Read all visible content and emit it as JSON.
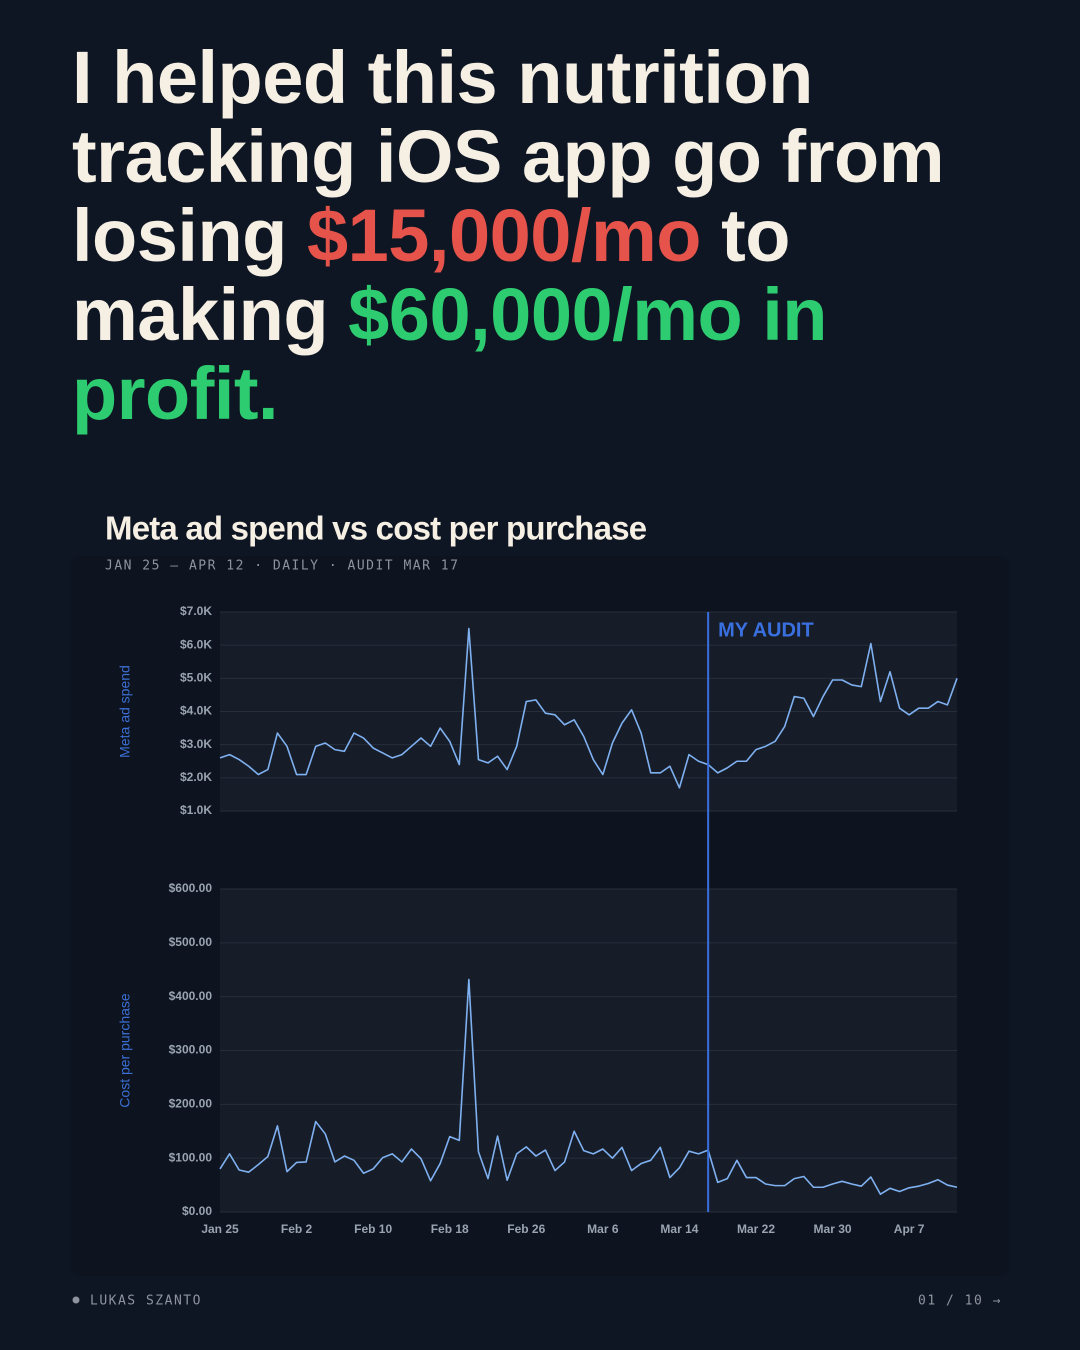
{
  "header": {
    "headline": [
      "I helped this nutrition tracking iOS app go from losing ",
      "$15,000/mo",
      " to making ",
      "$60,000/mo in profit."
    ]
  },
  "chart_data": {
    "type": "line",
    "title": "Meta ad spend vs cost per purchase",
    "subtitle": "JAN 25 – APR 12 · DAILY · AUDIT MAR 17",
    "categories": [
      "Jan 25",
      null,
      null,
      null,
      null,
      null,
      null,
      null,
      "Feb 2",
      null,
      null,
      null,
      null,
      null,
      null,
      null,
      "Feb 10",
      null,
      null,
      null,
      null,
      null,
      null,
      null,
      "Feb 18",
      null,
      null,
      null,
      null,
      null,
      null,
      null,
      "Feb 26",
      null,
      null,
      null,
      null,
      null,
      null,
      null,
      "Mar 6",
      null,
      null,
      null,
      null,
      null,
      null,
      null,
      "Mar 14",
      null,
      null,
      null,
      null,
      null,
      null,
      null,
      "Mar 22",
      null,
      null,
      null,
      null,
      null,
      null,
      null,
      "Mar 30",
      null,
      null,
      null,
      null,
      null,
      null,
      null,
      "Apr 7",
      null,
      null,
      null,
      null,
      null
    ],
    "annotation": {
      "label": "MY AUDIT",
      "at": 51,
      "color": "#3a6fe0"
    },
    "grid": true,
    "ylim": [
      1000,
      7000
    ],
    "yticks": [
      {
        "value": 1000,
        "label": "$1.0K"
      },
      {
        "value": 2000,
        "label": "$2.0K"
      },
      {
        "value": 3000,
        "label": "$3.0K"
      },
      {
        "value": 4000,
        "label": "$4.0K"
      },
      {
        "value": 5000,
        "label": "$5.0K"
      },
      {
        "value": 6000,
        "label": "$6.0K"
      },
      {
        "value": 7000,
        "label": "$7.0K"
      }
    ],
    "y2lim": [
      0,
      600
    ],
    "y2ticks": [
      {
        "value": 0,
        "label": "$0.00"
      },
      {
        "value": 100,
        "label": "$100.00"
      },
      {
        "value": 200,
        "label": "$200.00"
      },
      {
        "value": 300,
        "label": "$300.00"
      },
      {
        "value": 400,
        "label": "$400.00"
      },
      {
        "value": 500,
        "label": "$500.00"
      },
      {
        "value": 600,
        "label": "$600.00"
      }
    ],
    "series": [
      {
        "name": "Meta ad spend",
        "color": "#7fb0f0",
        "values": [
          2600,
          2700,
          2550,
          2350,
          2100,
          2250,
          3350,
          2950,
          2100,
          2100,
          2950,
          3050,
          2850,
          2800,
          3350,
          3200,
          2900,
          2750,
          2600,
          2700,
          2950,
          3200,
          2950,
          3500,
          3100,
          2400,
          6500,
          2550,
          2450,
          2650,
          2250,
          2950,
          4300,
          4350,
          3950,
          3900,
          3600,
          3750,
          3250,
          2550,
          2100,
          3050,
          3650,
          4050,
          3350,
          2150,
          2150,
          2350,
          1700,
          2700,
          2500,
          2400,
          2150,
          2300,
          2500,
          2500,
          2850,
          2950,
          3100,
          3550,
          4450,
          4400,
          3850,
          4450,
          4950,
          4950,
          4800,
          4750,
          6050,
          4300,
          5200,
          4100,
          3900,
          4100,
          4100,
          4300,
          4200,
          5000
        ]
      },
      {
        "name": "Cost per purchase",
        "color": "#7fb0f0",
        "axis": "y2",
        "values": [
          80,
          108,
          78,
          74,
          88,
          103,
          160,
          75,
          92,
          93,
          168,
          145,
          93,
          104,
          96,
          72,
          80,
          101,
          108,
          93,
          117,
          99,
          58,
          90,
          140,
          133,
          432,
          112,
          62,
          141,
          59,
          108,
          121,
          104,
          115,
          77,
          93,
          150,
          114,
          108,
          117,
          100,
          120,
          77,
          90,
          96,
          120,
          64,
          82,
          113,
          108,
          115,
          55,
          62,
          96,
          64,
          64,
          52,
          49,
          49,
          62,
          66,
          46,
          46,
          52,
          57,
          52,
          48,
          65,
          33,
          44,
          38,
          45,
          48,
          53,
          60,
          50,
          46
        ]
      }
    ]
  },
  "footer": {
    "author": "LUKAS SZANTO",
    "page": "01 / 10 →"
  }
}
